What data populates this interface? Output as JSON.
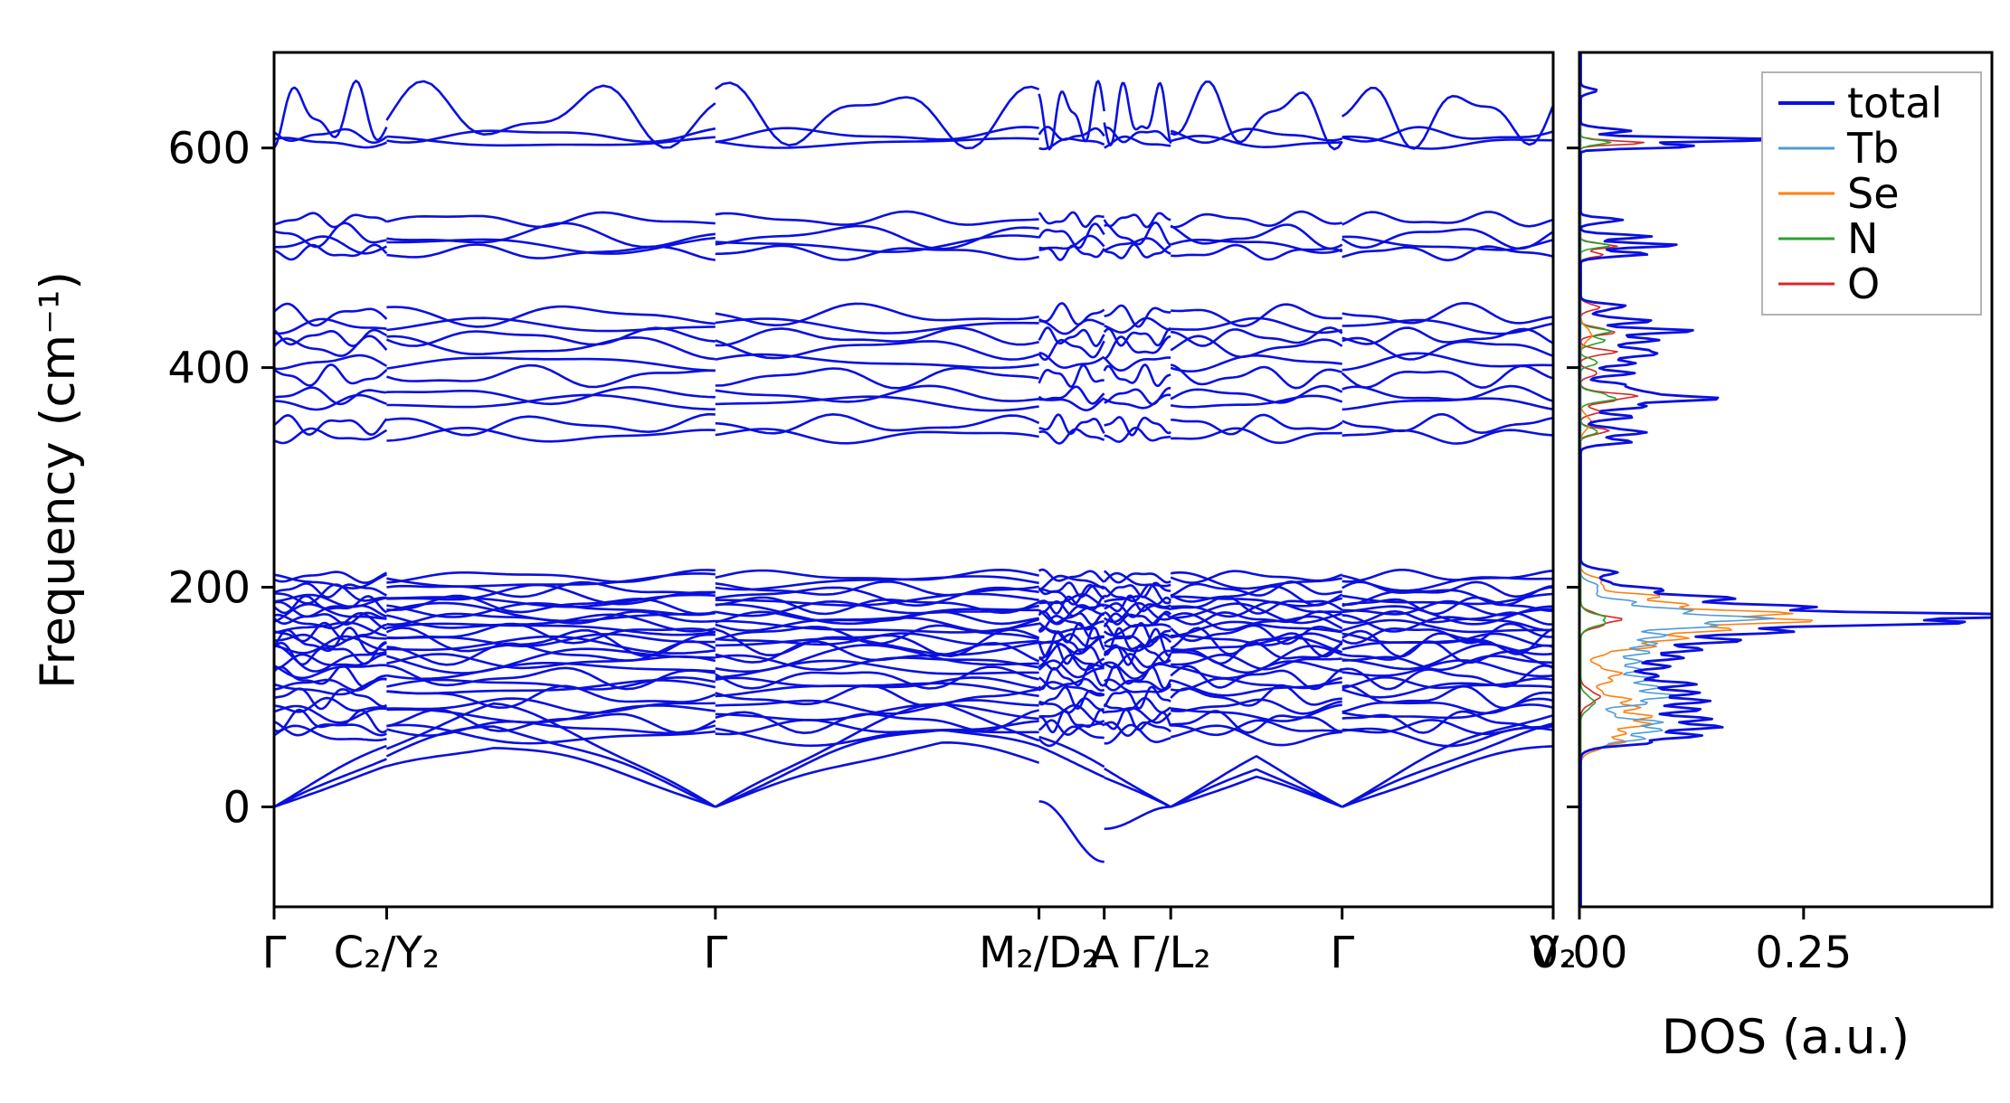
{
  "figure": {
    "background": "#ffffff",
    "spine_color": "#000000",
    "band_color": "#0a10df"
  },
  "chart_data": [
    {
      "type": "line",
      "name": "phonon-band-structure",
      "ylabel": "Frequency (cm⁻¹)",
      "ylim": [
        -91,
        687
      ],
      "yticks": [
        0,
        200,
        400,
        600
      ],
      "kpath": [
        {
          "label": "Γ",
          "pos": 0.0
        },
        {
          "label": "C₂/Y₂",
          "pos": 0.088
        },
        {
          "label": "Γ",
          "pos": 0.345
        },
        {
          "label": "M₂/D₂",
          "pos": 0.598
        },
        {
          "label": "A",
          "pos": 0.649
        },
        {
          "label": "Γ/L₂",
          "pos": 0.701
        },
        {
          "label": "Γ",
          "pos": 0.835
        },
        {
          "label": "V₂",
          "pos": 1.0
        }
      ],
      "gamma_zero_positions": [
        0.0,
        0.345,
        0.701,
        0.835
      ],
      "acoustic_band_heights": [
        95,
        78,
        60
      ],
      "soft_mode": {
        "dive_segment": [
          0.598,
          0.649
        ],
        "start": 5,
        "min": -50,
        "recover_segment": [
          0.649,
          0.701
        ],
        "recover_start": -20,
        "end": 0
      },
      "optical_bands": [
        {
          "f": 65,
          "a": 8
        },
        {
          "f": 72,
          "a": 6
        },
        {
          "f": 78,
          "a": 9
        },
        {
          "f": 85,
          "a": 7
        },
        {
          "f": 92,
          "a": 6
        },
        {
          "f": 100,
          "a": 9
        },
        {
          "f": 108,
          "a": 7
        },
        {
          "f": 112,
          "a": 5
        },
        {
          "f": 118,
          "a": 9
        },
        {
          "f": 125,
          "a": 7
        },
        {
          "f": 132,
          "a": 6
        },
        {
          "f": 140,
          "a": 9
        },
        {
          "f": 147,
          "a": 7
        },
        {
          "f": 152,
          "a": 5
        },
        {
          "f": 158,
          "a": 8
        },
        {
          "f": 163,
          "a": 6
        },
        {
          "f": 168,
          "a": 7
        },
        {
          "f": 172,
          "a": 5
        },
        {
          "f": 176,
          "a": 8
        },
        {
          "f": 180,
          "a": 6
        },
        {
          "f": 184,
          "a": 7
        },
        {
          "f": 188,
          "a": 5
        },
        {
          "f": 193,
          "a": 8
        },
        {
          "f": 198,
          "a": 6
        },
        {
          "f": 205,
          "a": 7
        },
        {
          "f": 210,
          "a": 5
        },
        {
          "f": 150,
          "a": 11
        },
        {
          "f": 135,
          "a": 11
        },
        {
          "f": 338,
          "a": 6
        },
        {
          "f": 348,
          "a": 8
        },
        {
          "f": 368,
          "a": 6
        },
        {
          "f": 375,
          "a": 7
        },
        {
          "f": 392,
          "a": 9
        },
        {
          "f": 405,
          "a": 7
        },
        {
          "f": 418,
          "a": 9
        },
        {
          "f": 428,
          "a": 7
        },
        {
          "f": 438,
          "a": 6
        },
        {
          "f": 448,
          "a": 9
        },
        {
          "f": 505,
          "a": 6
        },
        {
          "f": 512,
          "a": 7
        },
        {
          "f": 520,
          "a": 10
        },
        {
          "f": 535,
          "a": 6
        },
        {
          "f": 605,
          "a": 5
        },
        {
          "f": 612,
          "a": 6
        },
        {
          "f": 630,
          "a": 26
        }
      ]
    },
    {
      "type": "line",
      "name": "phonon-dos",
      "xlabel": "DOS (a.u.)",
      "xlim": [
        0,
        0.46
      ],
      "xticks": [
        {
          "label": "0.00",
          "value": 0.0
        },
        {
          "label": "0.25",
          "value": 0.25
        }
      ],
      "legend": {
        "position": "upper right"
      },
      "series": [
        {
          "name": "total",
          "color": "#0a10df",
          "width": 2.8,
          "peaks": [
            [
              62,
              0.09,
              7
            ],
            [
              75,
              0.13,
              9
            ],
            [
              88,
              0.07,
              8
            ],
            [
              100,
              0.11,
              10
            ],
            [
              113,
              0.08,
              7
            ],
            [
              126,
              0.07,
              8
            ],
            [
              140,
              0.1,
              9
            ],
            [
              152,
              0.12,
              7
            ],
            [
              163,
              0.2,
              7
            ],
            [
              172,
              0.4,
              6
            ],
            [
              180,
              0.18,
              7
            ],
            [
              190,
              0.12,
              7
            ],
            [
              200,
              0.05,
              6
            ],
            [
              213,
              0.035,
              5
            ],
            [
              333,
              0.05,
              4
            ],
            [
              342,
              0.07,
              4
            ],
            [
              355,
              0.05,
              4
            ],
            [
              365,
              0.06,
              4
            ],
            [
              373,
              0.14,
              5
            ],
            [
              383,
              0.06,
              4
            ],
            [
              395,
              0.05,
              4
            ],
            [
              405,
              0.06,
              4
            ],
            [
              414,
              0.1,
              4
            ],
            [
              424,
              0.08,
              4
            ],
            [
              433,
              0.11,
              4
            ],
            [
              443,
              0.07,
              4
            ],
            [
              455,
              0.05,
              4
            ],
            [
              503,
              0.07,
              3
            ],
            [
              511,
              0.1,
              3
            ],
            [
              519,
              0.07,
              3
            ],
            [
              534,
              0.045,
              3
            ],
            [
              602,
              0.15,
              2.5
            ],
            [
              608,
              0.21,
              2.5
            ],
            [
              616,
              0.05,
              3
            ],
            [
              652,
              0.018,
              3
            ]
          ]
        },
        {
          "name": "Tb",
          "color": "#4f9bd9",
          "width": 1.6,
          "peaks": [
            [
              62,
              0.05,
              8
            ],
            [
              75,
              0.08,
              9
            ],
            [
              100,
              0.09,
              10
            ],
            [
              115,
              0.06,
              8
            ],
            [
              128,
              0.05,
              8
            ],
            [
              142,
              0.06,
              9
            ],
            [
              155,
              0.07,
              8
            ],
            [
              168,
              0.13,
              7
            ],
            [
              175,
              0.1,
              7
            ],
            [
              185,
              0.05,
              7
            ],
            [
              200,
              0.02,
              6
            ]
          ]
        },
        {
          "name": "Se",
          "color": "#ff7f0e",
          "width": 1.6,
          "peaks": [
            [
              60,
              0.04,
              9
            ],
            [
              78,
              0.07,
              10
            ],
            [
              95,
              0.05,
              10
            ],
            [
              120,
              0.04,
              10
            ],
            [
              148,
              0.07,
              9
            ],
            [
              160,
              0.1,
              8
            ],
            [
              170,
              0.17,
              7
            ],
            [
              178,
              0.13,
              7
            ],
            [
              190,
              0.08,
              7
            ],
            [
              205,
              0.025,
              6
            ],
            [
              350,
              0.012,
              8
            ],
            [
              430,
              0.012,
              8
            ]
          ]
        },
        {
          "name": "N",
          "color": "#2ca02c",
          "width": 1.6,
          "peaks": [
            [
              95,
              0.015,
              8
            ],
            [
              170,
              0.03,
              7
            ],
            [
              342,
              0.02,
              4
            ],
            [
              373,
              0.04,
              5
            ],
            [
              405,
              0.02,
              4
            ],
            [
              424,
              0.025,
              4
            ],
            [
              433,
              0.03,
              4
            ],
            [
              511,
              0.03,
              3
            ],
            [
              605,
              0.03,
              3
            ]
          ]
        },
        {
          "name": "O",
          "color": "#d62728",
          "width": 1.6,
          "peaks": [
            [
              100,
              0.02,
              8
            ],
            [
              170,
              0.04,
              7
            ],
            [
              342,
              0.03,
              4
            ],
            [
              360,
              0.02,
              4
            ],
            [
              373,
              0.06,
              5
            ],
            [
              395,
              0.02,
              4
            ],
            [
              414,
              0.035,
              4
            ],
            [
              433,
              0.04,
              4
            ],
            [
              455,
              0.02,
              4
            ],
            [
              503,
              0.025,
              3
            ],
            [
              511,
              0.04,
              3
            ],
            [
              605,
              0.07,
              2.5
            ]
          ]
        }
      ]
    }
  ]
}
